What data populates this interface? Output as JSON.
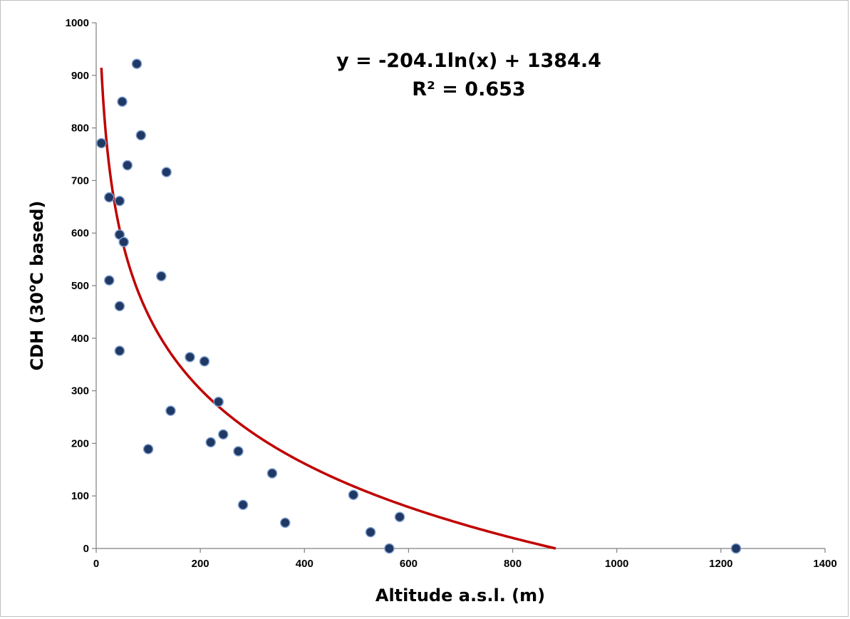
{
  "chart_data": {
    "type": "scatter",
    "title": "",
    "xlabel": "Altitude a.s.l. (m)",
    "ylabel_main": "CDH (30",
    "ylabel_sup": "o",
    "ylabel_tail": "C based)",
    "xlim": [
      0,
      1400
    ],
    "ylim": [
      0,
      1000
    ],
    "x_ticks": [
      0,
      200,
      400,
      600,
      800,
      1000,
      1200,
      1400
    ],
    "y_ticks": [
      0,
      100,
      200,
      300,
      400,
      500,
      600,
      700,
      800,
      900,
      1000
    ],
    "grid": false,
    "legend": "none",
    "marker_color": "#1f3864",
    "marker_edge_color": "#7f9fcf",
    "trendline_color": "#c00000",
    "points": [
      {
        "x": 10,
        "y": 771
      },
      {
        "x": 25,
        "y": 668
      },
      {
        "x": 25,
        "y": 510
      },
      {
        "x": 45,
        "y": 661
      },
      {
        "x": 45,
        "y": 597
      },
      {
        "x": 45,
        "y": 461
      },
      {
        "x": 45,
        "y": 376
      },
      {
        "x": 50,
        "y": 850
      },
      {
        "x": 53,
        "y": 583
      },
      {
        "x": 60,
        "y": 729
      },
      {
        "x": 78,
        "y": 922
      },
      {
        "x": 86,
        "y": 786
      },
      {
        "x": 100,
        "y": 189
      },
      {
        "x": 125,
        "y": 518
      },
      {
        "x": 135,
        "y": 716
      },
      {
        "x": 143,
        "y": 262
      },
      {
        "x": 180,
        "y": 364
      },
      {
        "x": 208,
        "y": 356
      },
      {
        "x": 220,
        "y": 202
      },
      {
        "x": 235,
        "y": 279
      },
      {
        "x": 244,
        "y": 217
      },
      {
        "x": 273,
        "y": 185
      },
      {
        "x": 282,
        "y": 83
      },
      {
        "x": 338,
        "y": 143
      },
      {
        "x": 363,
        "y": 49
      },
      {
        "x": 494,
        "y": 102
      },
      {
        "x": 527,
        "y": 31
      },
      {
        "x": 563,
        "y": 0
      },
      {
        "x": 583,
        "y": 60
      },
      {
        "x": 1229,
        "y": 0
      }
    ],
    "trendline": {
      "type": "logarithmic",
      "a": -204.1,
      "b": 1384.4,
      "x_start": 10,
      "equation_label": "y = -204.1ln(x) + 1384.4",
      "r2_label": "R² = 0.653"
    }
  }
}
